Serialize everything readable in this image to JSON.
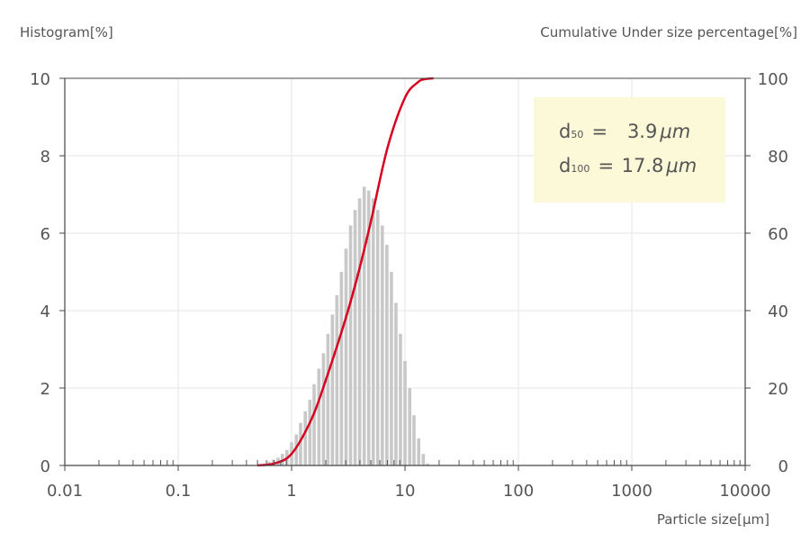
{
  "chart_data": {
    "type": "bar",
    "ylabel_left": "Histogram[%]",
    "ylabel_right": "Cumulative Under size percentage[%]",
    "xlabel": "Particle size[µm]",
    "x_scale": "log",
    "xlim": [
      0.01,
      10000
    ],
    "ylim_left": [
      0,
      10
    ],
    "ylim_right": [
      0,
      100
    ],
    "x_ticks": [
      "0.01",
      "0.1",
      "1",
      "10",
      "100",
      "1000",
      "10000"
    ],
    "y_ticks_left": [
      "0",
      "2",
      "4",
      "6",
      "8",
      "10"
    ],
    "y_ticks_right": [
      "0",
      "20",
      "40",
      "60",
      "80",
      "100"
    ],
    "grid": true,
    "histogram": {
      "name": "Histogram",
      "color": "#c8c8c8",
      "x": [
        0.58,
        0.63,
        0.69,
        0.76,
        0.83,
        0.91,
        1.0,
        1.1,
        1.2,
        1.32,
        1.45,
        1.58,
        1.74,
        1.91,
        2.09,
        2.29,
        2.51,
        2.75,
        3.02,
        3.31,
        3.63,
        3.98,
        4.37,
        4.79,
        5.25,
        5.75,
        6.31,
        6.92,
        7.59,
        8.32,
        9.12,
        10.0,
        11.0,
        12.0,
        13.2,
        14.5,
        15.8
      ],
      "values": [
        0.05,
        0.1,
        0.15,
        0.2,
        0.3,
        0.4,
        0.6,
        0.8,
        1.1,
        1.4,
        1.7,
        2.1,
        2.5,
        2.9,
        3.4,
        3.9,
        4.4,
        5.0,
        5.6,
        6.2,
        6.6,
        6.9,
        7.2,
        7.1,
        6.9,
        6.6,
        6.2,
        5.7,
        5.0,
        4.2,
        3.4,
        2.7,
        2.0,
        1.3,
        0.7,
        0.3,
        0.05
      ]
    },
    "cumulative": {
      "name": "Cumulative Under size percentage",
      "color": "#d7001e",
      "x": [
        0.5,
        0.7,
        1.0,
        1.5,
        2.0,
        3.0,
        3.9,
        5.0,
        7.0,
        10.0,
        13.0,
        15.0,
        17.8
      ],
      "values": [
        0,
        0.5,
        3,
        12,
        22,
        38,
        50,
        63,
        82,
        95,
        99,
        99.8,
        100
      ]
    },
    "annotations": [
      {
        "symbol": "d",
        "sub": "50",
        "eq": "=",
        "value": "3.9",
        "unit": "μm"
      },
      {
        "symbol": "d",
        "sub": "100",
        "eq": "=",
        "value": "17.8",
        "unit": "μm"
      }
    ]
  }
}
